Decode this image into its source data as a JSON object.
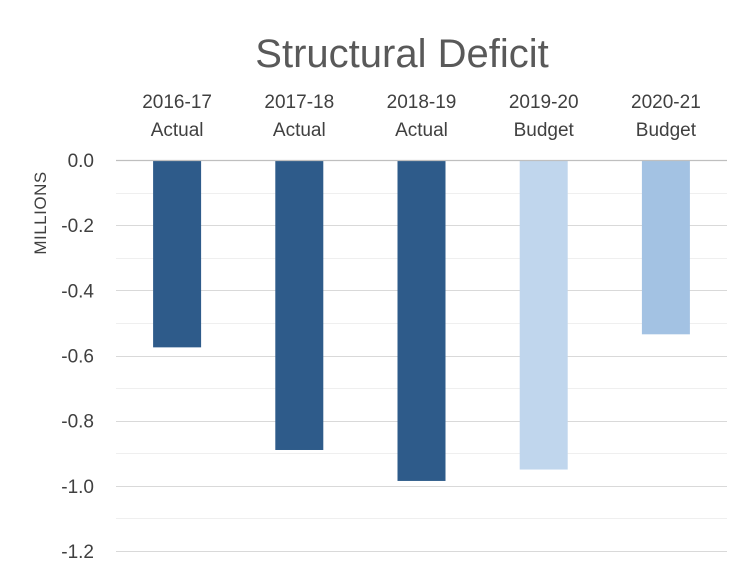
{
  "chart_data": {
    "type": "bar",
    "title": "Structural Deficit",
    "ylabel": "MILLIONS",
    "xlabel": "",
    "categories": [
      [
        "2016-17",
        "Actual"
      ],
      [
        "2017-18",
        "Actual"
      ],
      [
        "2018-19",
        "Actual"
      ],
      [
        "2019-20",
        "Budget"
      ],
      [
        "2020-21",
        "Budget"
      ]
    ],
    "values": [
      -0.575,
      -0.89,
      -0.985,
      -0.95,
      -0.535
    ],
    "bar_colors": [
      "#2e5b8a",
      "#2e5b8a",
      "#2e5b8a",
      "#c0d6ed",
      "#a3c2e3"
    ],
    "ylim": [
      -1.2,
      0.0
    ],
    "yticks": [
      0.0,
      -0.2,
      -0.4,
      -0.6,
      -0.8,
      -1.0,
      -1.2
    ],
    "ytick_labels": [
      "0.0",
      "-0.2",
      "-0.4",
      "-0.6",
      "-0.8",
      "-1.0",
      "-1.2"
    ],
    "category_label_position": "top",
    "grid": true,
    "legend": "none"
  }
}
